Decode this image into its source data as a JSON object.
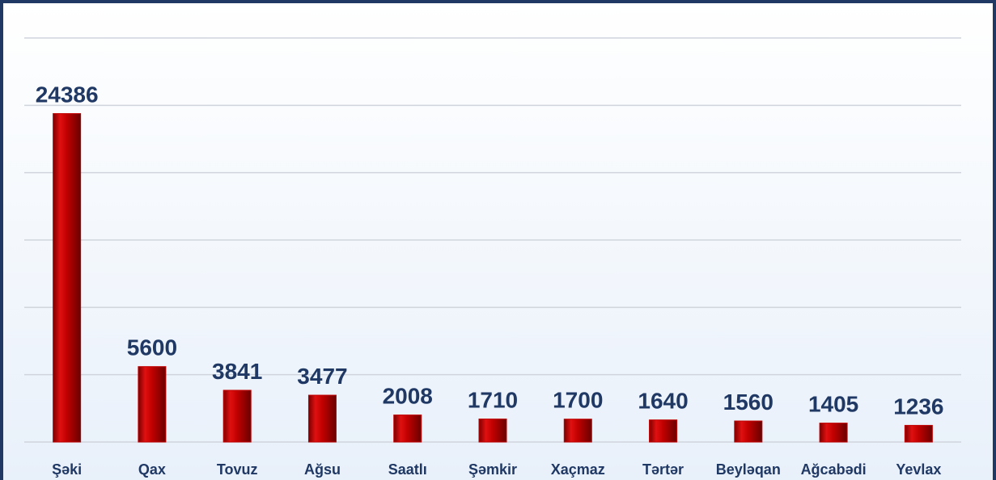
{
  "chart_data": {
    "type": "bar",
    "categories": [
      "Şəki",
      "Qax",
      "Tovuz",
      "Ağsu",
      "Saatlı",
      "Şəmkir",
      "Xaçmaz",
      "Tərtər",
      "Beyləqan",
      "Ağcabədi",
      "Yevlax"
    ],
    "values": [
      24386,
      5600,
      3841,
      3477,
      2008,
      1710,
      1700,
      1640,
      1560,
      1405,
      1236
    ],
    "color": "#c00000",
    "ylim": [
      0,
      30000
    ],
    "yticks": [
      0,
      5000,
      10000,
      15000,
      20000,
      25000,
      30000
    ],
    "grid": true
  }
}
